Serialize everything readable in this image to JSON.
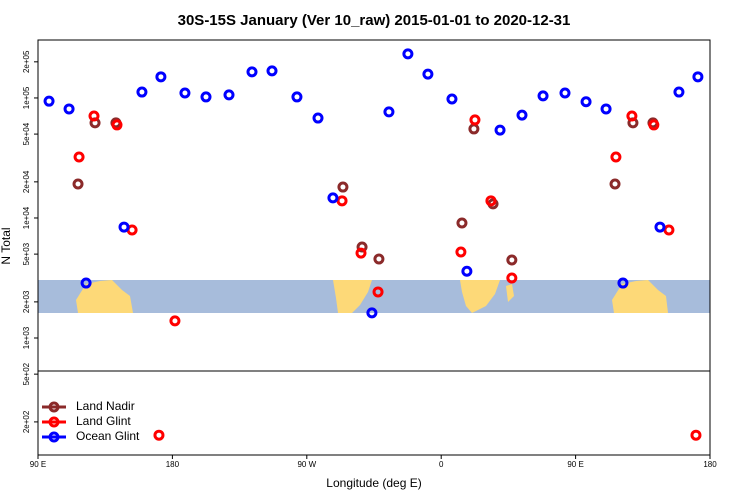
{
  "chart_data": {
    "type": "scatter",
    "title": "30S-15S January (Ver 10_raw)   2015-01-01 to 2020-12-31",
    "x_label": "Longitude (deg E)",
    "y_label": "N Total",
    "ylog": true,
    "legend": "bottom left",
    "grid": false,
    "xlim": [
      90,
      540
    ],
    "xticks": [
      {
        "value": 90,
        "label": "90 E"
      },
      {
        "value": 180,
        "label": "180"
      },
      {
        "value": 270,
        "label": "90 W"
      },
      {
        "value": 360,
        "label": "0"
      },
      {
        "value": 450,
        "label": "90 E"
      },
      {
        "value": 540,
        "label": "180"
      }
    ],
    "ylim": [
      106,
      304000
    ],
    "yticks": [
      {
        "value": 200,
        "label": "2e+02"
      },
      {
        "value": 500,
        "label": "5e+02"
      },
      {
        "value": 1000,
        "label": "1e+03"
      },
      {
        "value": 2000,
        "label": "2e+03"
      },
      {
        "value": 5000,
        "label": "5e+03"
      },
      {
        "value": 10000,
        "label": "1e+04"
      },
      {
        "value": 20000,
        "label": "2e+04"
      },
      {
        "value": 50000,
        "label": "5e+04"
      },
      {
        "value": 100000,
        "label": "1e+05"
      },
      {
        "value": 200000,
        "label": "2e+05"
      }
    ],
    "series": [
      {
        "name": "Land Nadir",
        "color": "#8b2a2a",
        "x": [
          116.8,
          128.2,
          142.2,
          294.2,
          307,
          318.3,
          373.9,
          381.9,
          394.7,
          407.3,
          476.4,
          488.4,
          501.8
        ],
        "values": [
          19200,
          62000,
          62000,
          18100,
          5730,
          4550,
          9090,
          55200,
          13100,
          4470,
          19200,
          62000,
          62000
        ]
      },
      {
        "name": "Land Glint",
        "color": "#ff0000",
        "x": [
          117.5,
          127.5,
          142.9,
          153,
          181.7,
          171,
          293.6,
          306.3,
          317.7,
          373.2,
          382.6,
          393.3,
          407.3,
          477,
          487.7,
          502.4,
          512.5,
          530.6
        ],
        "values": [
          32200,
          70800,
          59600,
          7940,
          1390,
          155,
          13900,
          5100,
          2420,
          5210,
          65600,
          13900,
          3160,
          32200,
          70800,
          59600,
          7940,
          155
        ]
      },
      {
        "name": "Ocean Glint",
        "color": "#0000ff",
        "x": [
          97.4,
          110.8,
          122.2,
          147.6,
          159.6,
          172.3,
          188.4,
          202.5,
          217.9,
          233.3,
          246.7,
          263.4,
          277.5,
          287.5,
          313.6,
          325,
          337.7,
          351.1,
          367.2,
          377.2,
          399.4,
          414.1,
          428.2,
          442.9,
          457,
          470.4,
          481.7,
          506.5,
          519.2,
          531.9
        ],
        "values": [
          94000,
          81000,
          2870,
          8400,
          112000,
          150000,
          110000,
          102000,
          106000,
          165000,
          168000,
          102000,
          68000,
          14700,
          1620,
          76500,
          233000,
          158000,
          98000,
          3600,
          54000,
          72000,
          104000,
          110000,
          93000,
          81000,
          2870,
          8400,
          112000,
          150000
        ]
      }
    ]
  }
}
